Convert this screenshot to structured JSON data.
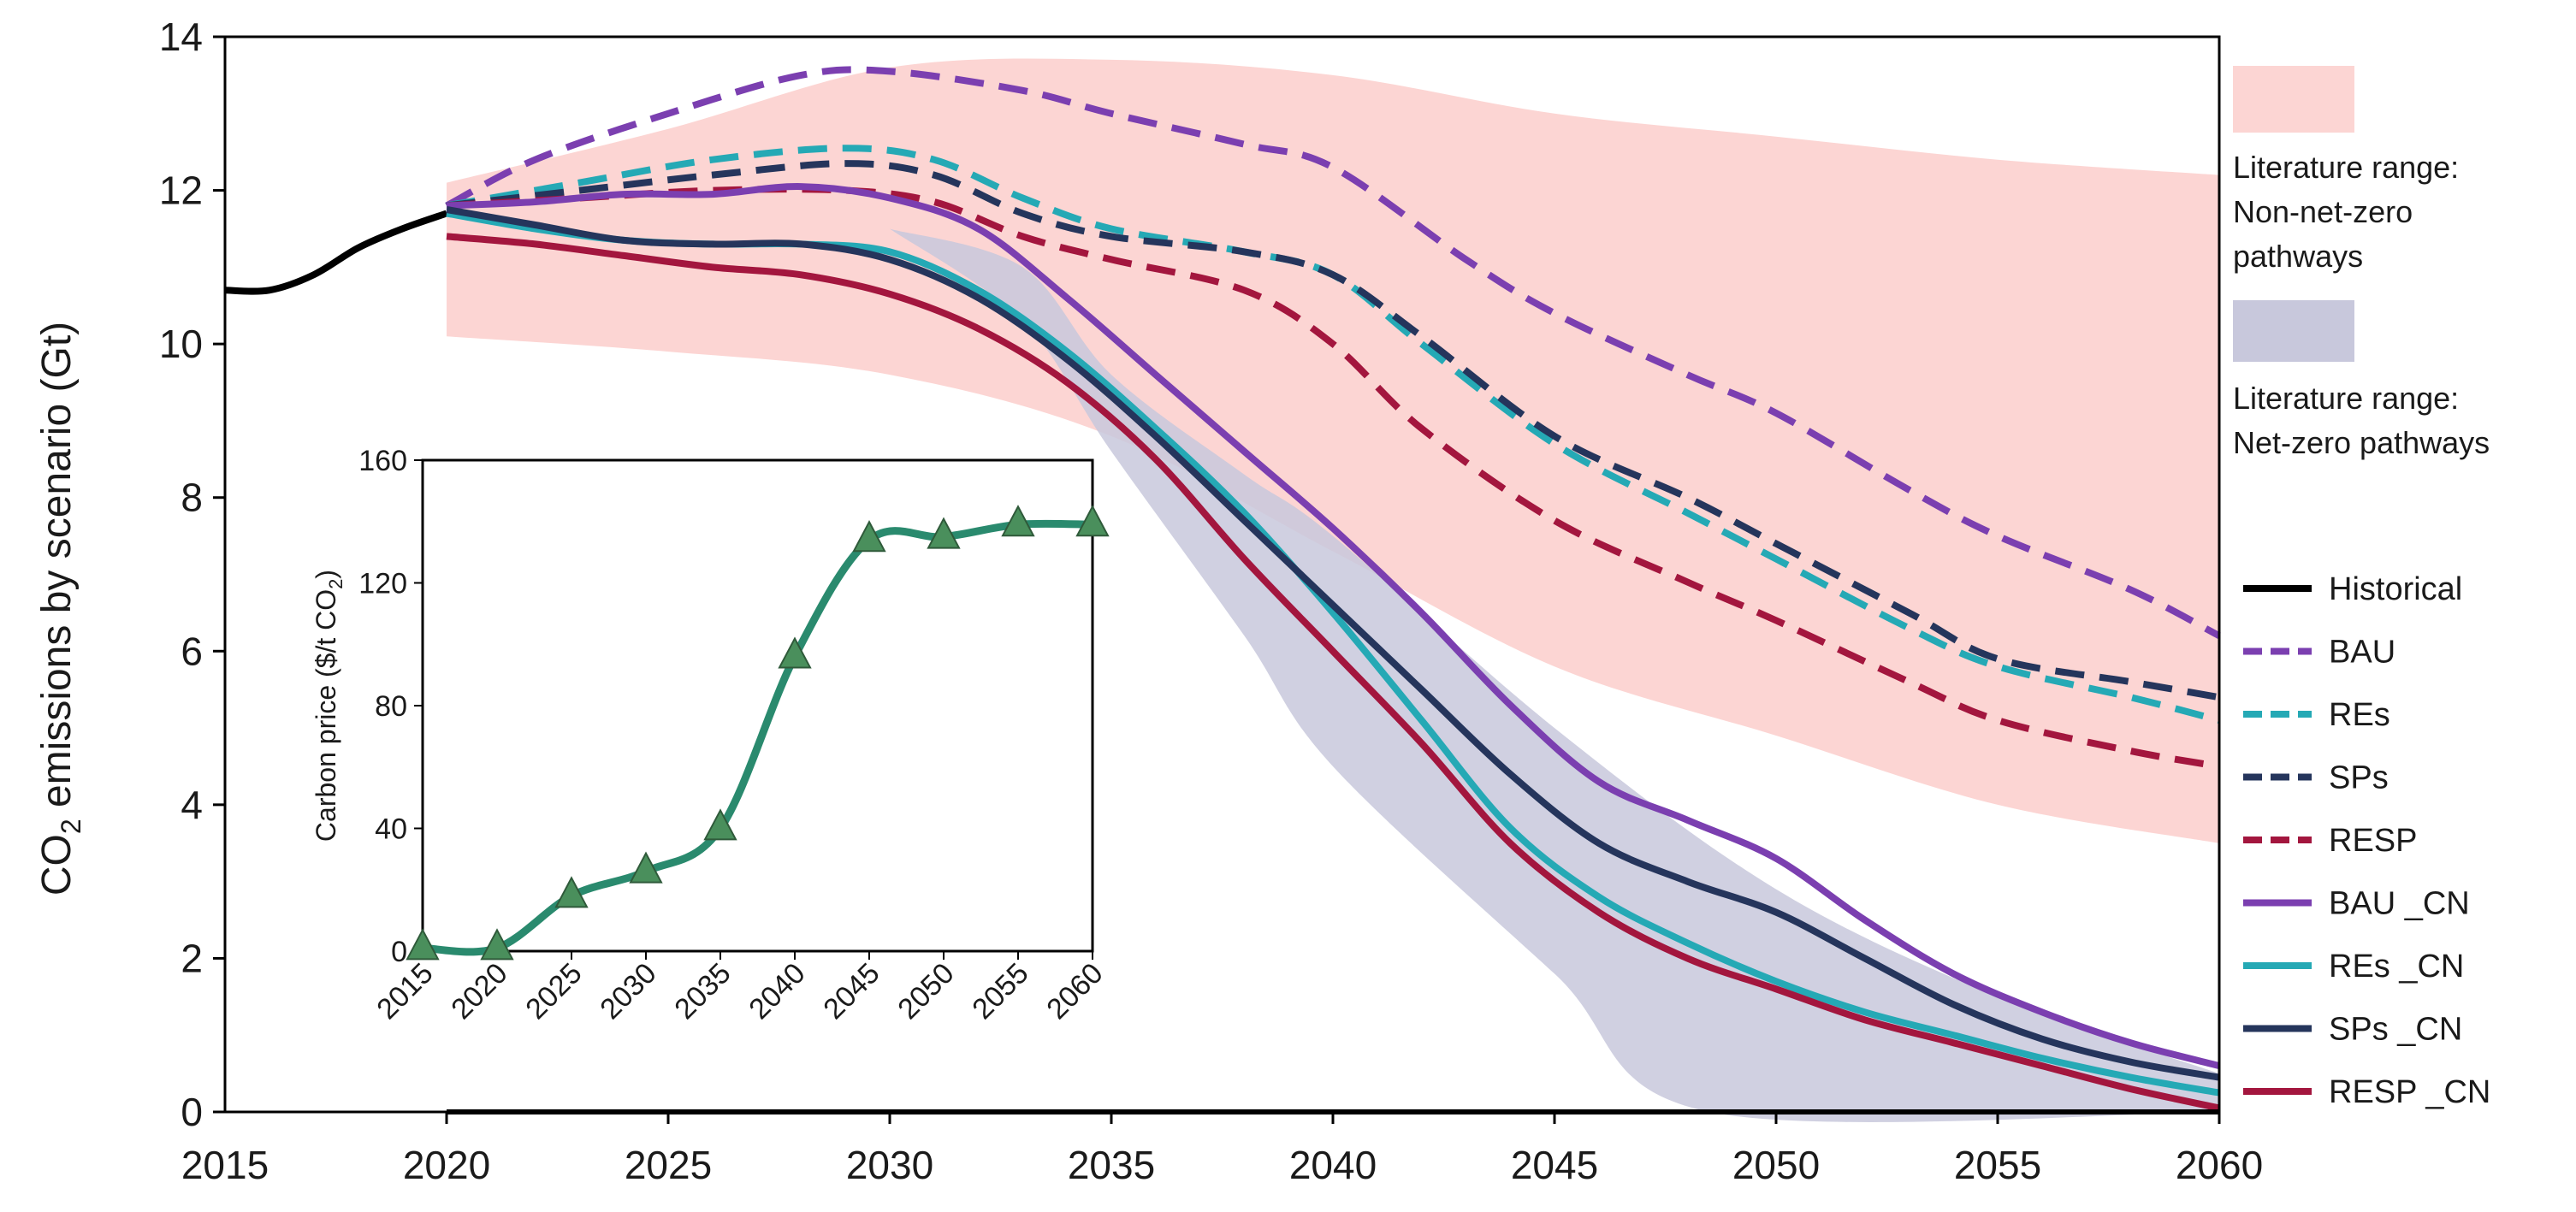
{
  "chart_data": [
    {
      "type": "line",
      "ylabel_main": "CO",
      "ylabel_sub": "2",
      "ylabel_rest": " emissions by scenario (Gt)",
      "xlim": [
        2015,
        2060
      ],
      "ylim": [
        0,
        14
      ],
      "xticks": [
        2015,
        2020,
        2025,
        2030,
        2035,
        2040,
        2045,
        2050,
        2055,
        2060
      ],
      "yticks": [
        0,
        2,
        4,
        6,
        8,
        10,
        12,
        14
      ],
      "bands": [
        {
          "name": "Literature range: Non-net-zero pathways",
          "legend_lines": [
            "Literature range:",
            "Non-net-zero",
            "pathways"
          ],
          "color": "#fcd5d3",
          "upper": [
            [
              2020,
              12.1
            ],
            [
              2025,
              12.8
            ],
            [
              2030,
              13.6
            ],
            [
              2035,
              13.7
            ],
            [
              2040,
              13.5
            ],
            [
              2045,
              13.0
            ],
            [
              2050,
              12.7
            ],
            [
              2055,
              12.4
            ],
            [
              2060,
              12.2
            ]
          ],
          "lower": [
            [
              2020,
              10.1
            ],
            [
              2025,
              9.9
            ],
            [
              2030,
              9.6
            ],
            [
              2035,
              8.8
            ],
            [
              2040,
              7.3
            ],
            [
              2045,
              5.8
            ],
            [
              2050,
              4.9
            ],
            [
              2055,
              4.0
            ],
            [
              2060,
              3.5
            ]
          ]
        },
        {
          "name": "Literature range: Net-zero pathways",
          "legend_lines": [
            "Literature range:",
            "Net-zero pathways"
          ],
          "color": "#c8c8dc",
          "upper": [
            [
              2030,
              11.5
            ],
            [
              2033,
              11.0
            ],
            [
              2035,
              9.6
            ],
            [
              2038,
              8.3
            ],
            [
              2040,
              7.5
            ],
            [
              2045,
              5.0
            ],
            [
              2050,
              2.9
            ],
            [
              2055,
              1.5
            ],
            [
              2060,
              0.5
            ]
          ],
          "lower": [
            [
              2030,
              11.5
            ],
            [
              2033,
              10.3
            ],
            [
              2035,
              8.6
            ],
            [
              2038,
              6.2
            ],
            [
              2040,
              4.5
            ],
            [
              2045,
              1.8
            ],
            [
              2048.5,
              0.0
            ],
            [
              2060,
              0.0
            ]
          ]
        }
      ],
      "series": [
        {
          "name": "Historical",
          "color": "#000000",
          "dash": false,
          "points": [
            [
              2015,
              10.7
            ],
            [
              2016,
              10.7
            ],
            [
              2017,
              10.9
            ],
            [
              2018,
              11.25
            ],
            [
              2019,
              11.5
            ],
            [
              2020,
              11.7
            ]
          ]
        },
        {
          "name": "BAU",
          "color": "#7b3fb0",
          "dash": true,
          "points": [
            [
              2020,
              11.8
            ],
            [
              2022,
              12.4
            ],
            [
              2025,
              13.0
            ],
            [
              2028,
              13.5
            ],
            [
              2030,
              13.55
            ],
            [
              2033,
              13.3
            ],
            [
              2035,
              13.0
            ],
            [
              2038,
              12.6
            ],
            [
              2040,
              12.3
            ],
            [
              2043,
              11.1
            ],
            [
              2045,
              10.4
            ],
            [
              2048,
              9.6
            ],
            [
              2050,
              9.1
            ],
            [
              2053,
              8.1
            ],
            [
              2055,
              7.5
            ],
            [
              2058,
              6.8
            ],
            [
              2060,
              6.2
            ]
          ]
        },
        {
          "name": "REs",
          "color": "#25a9b5",
          "dash": true,
          "points": [
            [
              2020,
              11.8
            ],
            [
              2023,
              12.1
            ],
            [
              2026,
              12.4
            ],
            [
              2029,
              12.55
            ],
            [
              2031,
              12.4
            ],
            [
              2033,
              11.9
            ],
            [
              2035,
              11.5
            ],
            [
              2038,
              11.2
            ],
            [
              2040,
              10.9
            ],
            [
              2042,
              10.0
            ],
            [
              2045,
              8.7
            ],
            [
              2048,
              7.8
            ],
            [
              2050,
              7.2
            ],
            [
              2053,
              6.3
            ],
            [
              2055,
              5.8
            ],
            [
              2058,
              5.4
            ],
            [
              2060,
              5.1
            ]
          ]
        },
        {
          "name": "SPs",
          "color": "#25355c",
          "dash": true,
          "points": [
            [
              2020,
              11.8
            ],
            [
              2023,
              12.0
            ],
            [
              2026,
              12.2
            ],
            [
              2029,
              12.35
            ],
            [
              2031,
              12.2
            ],
            [
              2033,
              11.7
            ],
            [
              2035,
              11.4
            ],
            [
              2038,
              11.2
            ],
            [
              2040,
              10.9
            ],
            [
              2042,
              10.1
            ],
            [
              2045,
              8.8
            ],
            [
              2048,
              8.0
            ],
            [
              2050,
              7.4
            ],
            [
              2053,
              6.5
            ],
            [
              2055,
              5.9
            ],
            [
              2058,
              5.6
            ],
            [
              2060,
              5.4
            ]
          ]
        },
        {
          "name": "RESP",
          "color": "#a3163e",
          "dash": true,
          "points": [
            [
              2020,
              11.8
            ],
            [
              2023,
              11.9
            ],
            [
              2026,
              12.0
            ],
            [
              2029,
              12.0
            ],
            [
              2031,
              11.85
            ],
            [
              2033,
              11.4
            ],
            [
              2035,
              11.1
            ],
            [
              2038,
              10.7
            ],
            [
              2040,
              10.0
            ],
            [
              2042,
              8.9
            ],
            [
              2045,
              7.7
            ],
            [
              2048,
              6.9
            ],
            [
              2050,
              6.4
            ],
            [
              2053,
              5.6
            ],
            [
              2055,
              5.1
            ],
            [
              2058,
              4.7
            ],
            [
              2060,
              4.5
            ]
          ]
        },
        {
          "name": "BAU _CN",
          "color": "#7b3fb0",
          "dash": false,
          "points": [
            [
              2020,
              11.8
            ],
            [
              2022,
              11.85
            ],
            [
              2024,
              11.95
            ],
            [
              2026,
              11.95
            ],
            [
              2028,
              12.05
            ],
            [
              2030,
              11.9
            ],
            [
              2032,
              11.5
            ],
            [
              2034,
              10.6
            ],
            [
              2036,
              9.6
            ],
            [
              2038,
              8.6
            ],
            [
              2040,
              7.6
            ],
            [
              2042,
              6.5
            ],
            [
              2044,
              5.3
            ],
            [
              2046,
              4.3
            ],
            [
              2048,
              3.8
            ],
            [
              2050,
              3.3
            ],
            [
              2052,
              2.5
            ],
            [
              2054,
              1.8
            ],
            [
              2056,
              1.3
            ],
            [
              2058,
              0.9
            ],
            [
              2060,
              0.6
            ]
          ]
        },
        {
          "name": "REs _CN",
          "color": "#25a9b5",
          "dash": false,
          "points": [
            [
              2020,
              11.7
            ],
            [
              2022,
              11.5
            ],
            [
              2024,
              11.35
            ],
            [
              2026,
              11.3
            ],
            [
              2028,
              11.3
            ],
            [
              2030,
              11.2
            ],
            [
              2032,
              10.7
            ],
            [
              2034,
              9.9
            ],
            [
              2036,
              8.9
            ],
            [
              2038,
              7.8
            ],
            [
              2040,
              6.5
            ],
            [
              2042,
              5.1
            ],
            [
              2044,
              3.7
            ],
            [
              2046,
              2.8
            ],
            [
              2048,
              2.2
            ],
            [
              2050,
              1.7
            ],
            [
              2052,
              1.3
            ],
            [
              2054,
              1.0
            ],
            [
              2056,
              0.7
            ],
            [
              2058,
              0.45
            ],
            [
              2060,
              0.25
            ]
          ]
        },
        {
          "name": "SPs _CN",
          "color": "#25355c",
          "dash": false,
          "points": [
            [
              2020,
              11.75
            ],
            [
              2022,
              11.55
            ],
            [
              2024,
              11.35
            ],
            [
              2026,
              11.3
            ],
            [
              2028,
              11.3
            ],
            [
              2030,
              11.1
            ],
            [
              2032,
              10.6
            ],
            [
              2034,
              9.8
            ],
            [
              2036,
              8.8
            ],
            [
              2038,
              7.7
            ],
            [
              2040,
              6.6
            ],
            [
              2042,
              5.5
            ],
            [
              2044,
              4.4
            ],
            [
              2046,
              3.5
            ],
            [
              2048,
              3.0
            ],
            [
              2050,
              2.6
            ],
            [
              2052,
              2.0
            ],
            [
              2054,
              1.4
            ],
            [
              2056,
              0.95
            ],
            [
              2058,
              0.65
            ],
            [
              2060,
              0.45
            ]
          ]
        },
        {
          "name": "RESP _CN",
          "color": "#a3163e",
          "dash": false,
          "points": [
            [
              2020,
              11.4
            ],
            [
              2022,
              11.3
            ],
            [
              2024,
              11.15
            ],
            [
              2026,
              11.0
            ],
            [
              2028,
              10.9
            ],
            [
              2030,
              10.65
            ],
            [
              2032,
              10.2
            ],
            [
              2034,
              9.5
            ],
            [
              2036,
              8.5
            ],
            [
              2038,
              7.2
            ],
            [
              2040,
              6.0
            ],
            [
              2042,
              4.8
            ],
            [
              2044,
              3.5
            ],
            [
              2046,
              2.6
            ],
            [
              2048,
              2.0
            ],
            [
              2050,
              1.6
            ],
            [
              2052,
              1.2
            ],
            [
              2054,
              0.9
            ],
            [
              2056,
              0.6
            ],
            [
              2058,
              0.3
            ],
            [
              2060,
              0.05
            ]
          ]
        }
      ]
    },
    {
      "type": "line",
      "ylabel_main": "Carbon price ($/t CO",
      "ylabel_sub": "2",
      "ylabel_rest": ")",
      "ylim": [
        0,
        160
      ],
      "yticks": [
        0,
        40,
        80,
        120,
        160
      ],
      "categories": [
        "2015",
        "2020",
        "2025",
        "2030",
        "2035",
        "2040",
        "2045",
        "2050",
        "2055",
        "2060"
      ],
      "series": [
        {
          "color": "#2a8a6e",
          "marker_color": "#4a8f5c",
          "values": [
            1,
            1,
            18,
            26,
            40,
            96,
            134,
            135,
            139,
            139
          ]
        }
      ]
    }
  ]
}
